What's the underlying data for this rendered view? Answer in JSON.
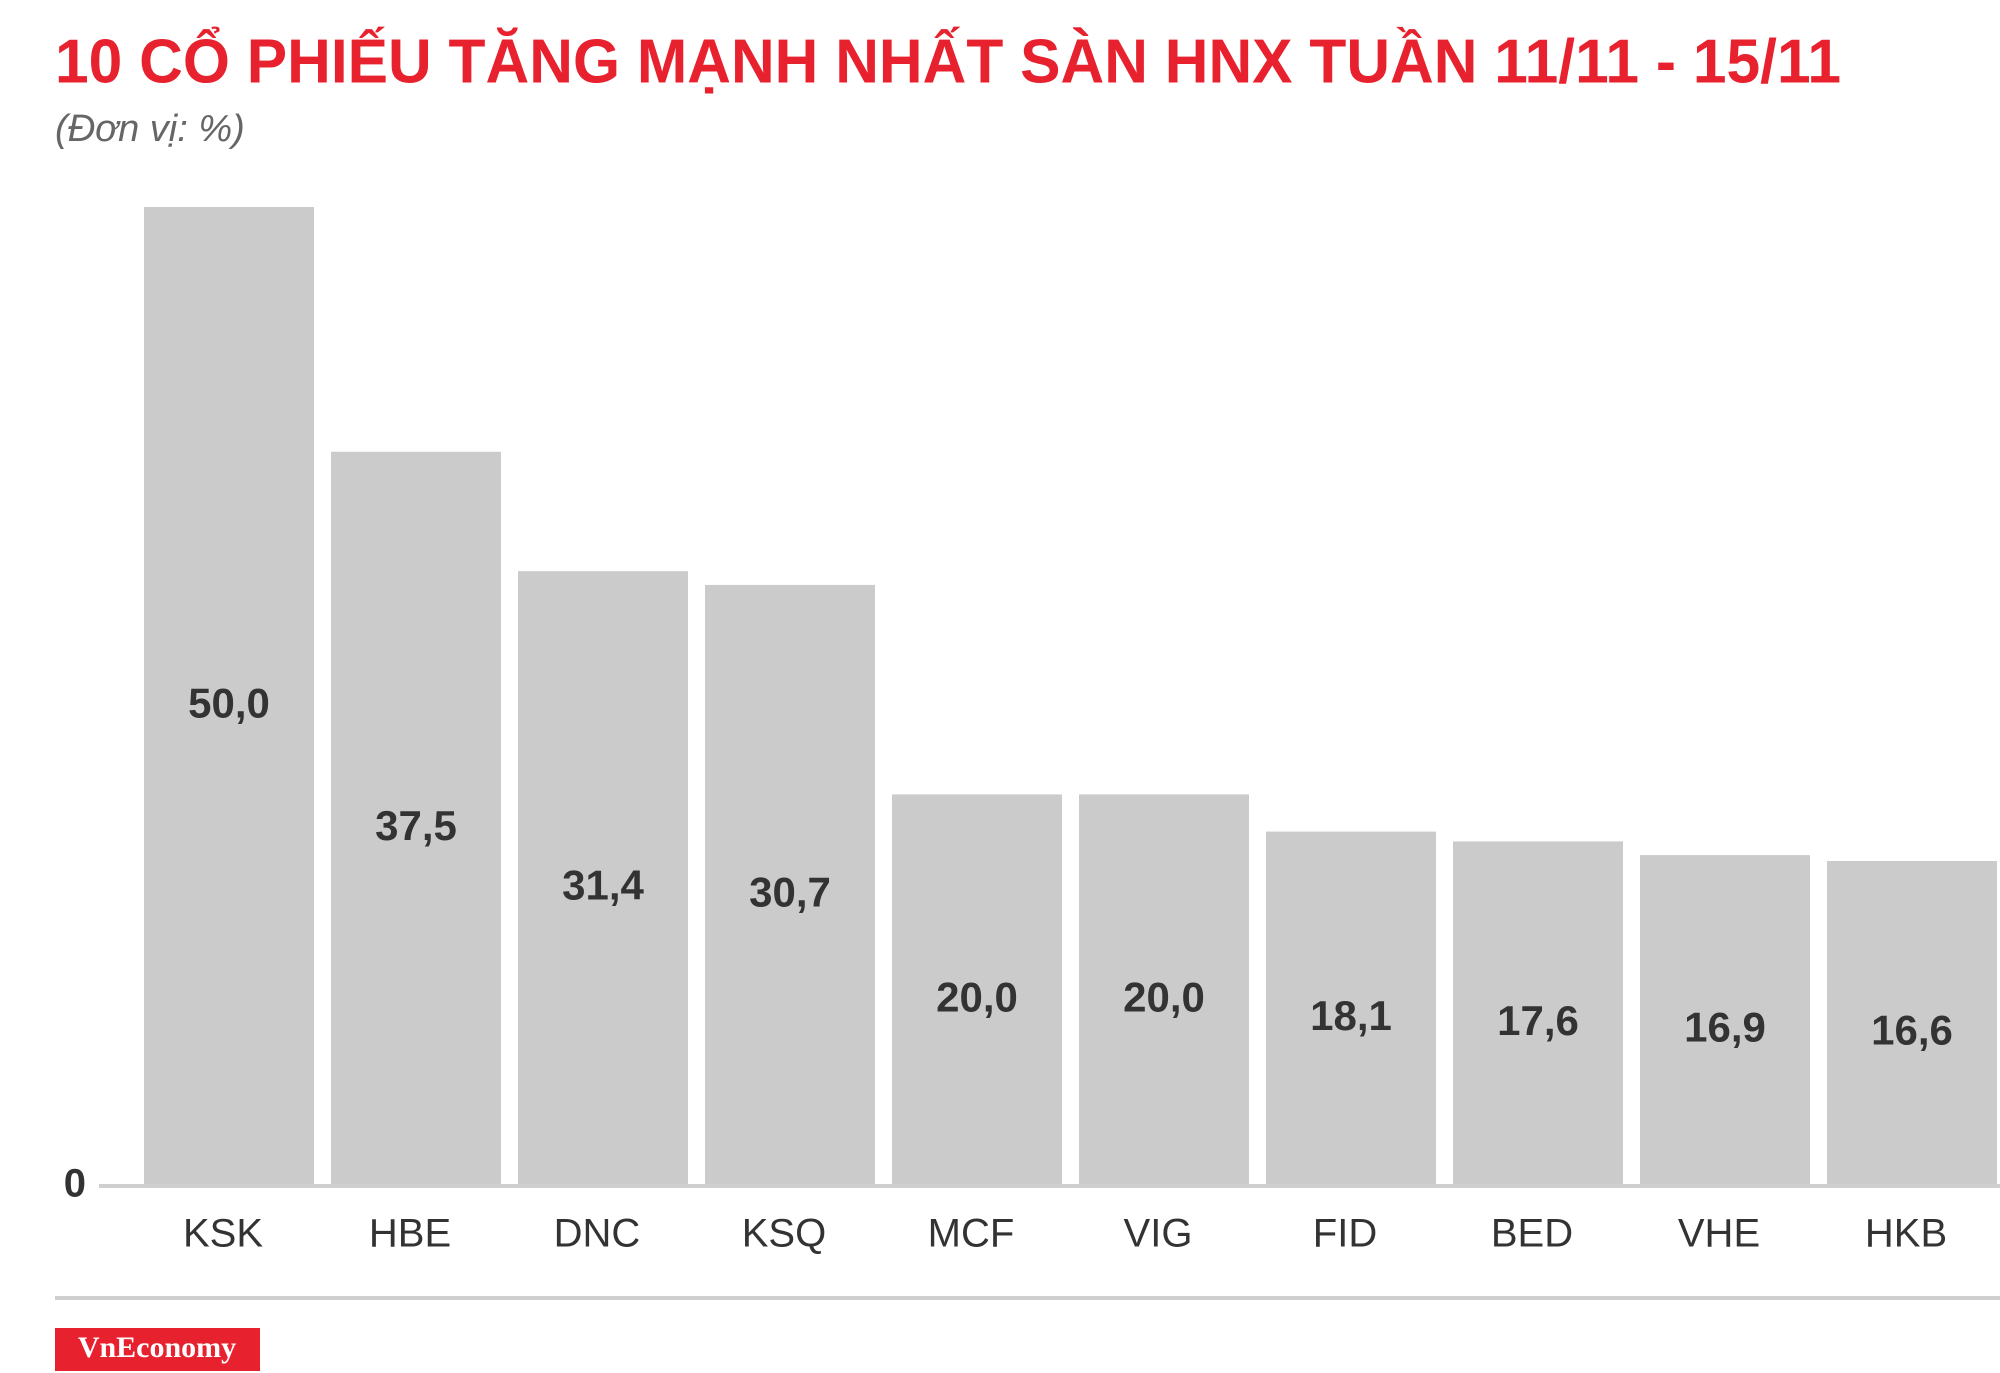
{
  "chart_data": {
    "type": "bar",
    "title": "10 CỔ PHIẾU TĂNG MẠNH NHẤT SÀN HNX TUẦN 11/11 - 15/11",
    "subtitle": "(Đơn vị: %)",
    "categories": [
      "KSK",
      "HBE",
      "DNC",
      "KSQ",
      "MCF",
      "VIG",
      "FID",
      "BED",
      "VHE",
      "HKB"
    ],
    "values": [
      50.0,
      37.5,
      31.4,
      30.7,
      20.0,
      20.0,
      18.1,
      17.6,
      16.9,
      16.6
    ],
    "value_labels": [
      "50,0",
      "37,5",
      "31,4",
      "30,7",
      "20,0",
      "20,0",
      "18,1",
      "17,6",
      "16,9",
      "16,6"
    ],
    "color": "#cccbcb",
    "ylim": [
      0,
      50
    ],
    "yticks": [
      0
    ]
  },
  "logo": "VnEconomy"
}
